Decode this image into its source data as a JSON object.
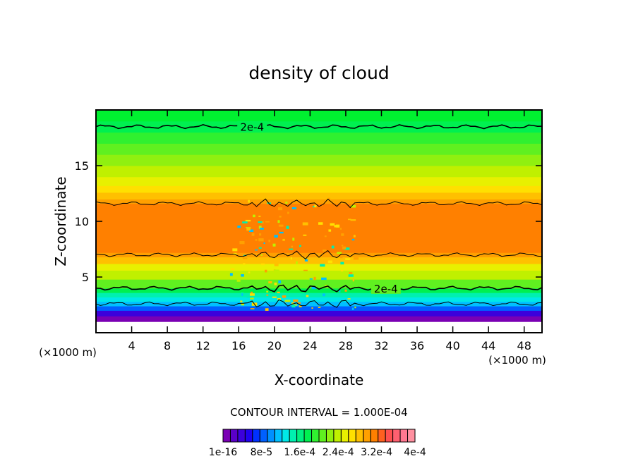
{
  "chart_data": {
    "type": "heatmap",
    "title": "density of cloud",
    "xlabel": "X-coordinate",
    "ylabel": "Z-coordinate",
    "x_unit_left": "(×1000 m)",
    "x_unit_right": "(×1000 m)",
    "xlim": [
      0,
      50
    ],
    "ylim": [
      0,
      20
    ],
    "x_ticks": [
      "4",
      "8",
      "12",
      "16",
      "20",
      "24",
      "28",
      "32",
      "36",
      "40",
      "44",
      "48"
    ],
    "y_ticks": [
      "5",
      "10",
      "15"
    ],
    "contour_interval_text": "CONTOUR INTERVAL = 1.000E-04",
    "contour_labels": [
      {
        "text": "2e-4",
        "x": 17.5,
        "y": 18.5
      },
      {
        "text": "2e-4",
        "x": 32.5,
        "y": 4.0
      }
    ],
    "colorbar_labels": [
      "1e-16",
      "8e-5",
      "1.6e-4",
      "2.4e-4",
      "3.2e-4",
      "4e-4"
    ],
    "colorbar_colors": [
      "#7a00b4",
      "#5a00c8",
      "#3c00dc",
      "#2000f0",
      "#0030ff",
      "#0060ff",
      "#0090ff",
      "#00c0ff",
      "#00e8e8",
      "#00f0b0",
      "#00f080",
      "#00f050",
      "#30f030",
      "#60f020",
      "#90f010",
      "#c0f000",
      "#e8f000",
      "#ffe000",
      "#ffc000",
      "#ffa000",
      "#ff8000",
      "#ff6020",
      "#ff5050",
      "#ff6070",
      "#ff7890",
      "#ff90a0"
    ],
    "bands": [
      {
        "z0": 0.0,
        "z1": 1.0,
        "color": "#ffffff"
      },
      {
        "z0": 1.0,
        "z1": 1.5,
        "color": "#7a00b4"
      },
      {
        "z0": 1.5,
        "z1": 2.0,
        "color": "#3c00dc"
      },
      {
        "z0": 2.0,
        "z1": 2.4,
        "color": "#0060ff"
      },
      {
        "z0": 2.4,
        "z1": 2.8,
        "color": "#00c0ff"
      },
      {
        "z0": 2.8,
        "z1": 3.2,
        "color": "#00e8e8"
      },
      {
        "z0": 3.2,
        "z1": 3.6,
        "color": "#00f0b0"
      },
      {
        "z0": 3.6,
        "z1": 4.0,
        "color": "#00f050"
      },
      {
        "z0": 4.0,
        "z1": 4.8,
        "color": "#60f020"
      },
      {
        "z0": 4.8,
        "z1": 5.6,
        "color": "#c0f000"
      },
      {
        "z0": 5.6,
        "z1": 6.2,
        "color": "#e8f000"
      },
      {
        "z0": 6.2,
        "z1": 6.8,
        "color": "#ffc000"
      },
      {
        "z0": 6.8,
        "z1": 7.2,
        "color": "#ffa000"
      },
      {
        "z0": 7.2,
        "z1": 11.6,
        "color": "#ff8000"
      },
      {
        "z0": 11.6,
        "z1": 12.0,
        "color": "#ffa000"
      },
      {
        "z0": 12.0,
        "z1": 12.6,
        "color": "#ffc000"
      },
      {
        "z0": 12.6,
        "z1": 13.2,
        "color": "#ffe000"
      },
      {
        "z0": 13.2,
        "z1": 14.0,
        "color": "#e8f000"
      },
      {
        "z0": 14.0,
        "z1": 15.0,
        "color": "#c0f000"
      },
      {
        "z0": 15.0,
        "z1": 16.0,
        "color": "#90f010"
      },
      {
        "z0": 16.0,
        "z1": 17.0,
        "color": "#60f020"
      },
      {
        "z0": 17.0,
        "z1": 18.0,
        "color": "#30f030"
      },
      {
        "z0": 18.0,
        "z1": 19.0,
        "color": "#00f050"
      },
      {
        "z0": 19.0,
        "z1": 20.0,
        "color": "#00f030"
      }
    ],
    "contour_lines_z": [
      18.5,
      11.6,
      7.0,
      4.0,
      2.6
    ],
    "grid": false
  }
}
